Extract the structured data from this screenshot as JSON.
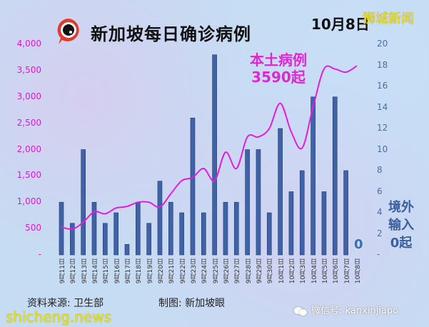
{
  "header": {
    "title": "新加坡每日确诊病例",
    "date": "10月8日",
    "brand": "狮城新闻",
    "logo_icon": "eye-speech-bubble-icon"
  },
  "annotations": {
    "local_label": "本土病例",
    "local_value": "3590起",
    "import_line1": "境外",
    "import_line2": "输入",
    "import_value": "0起",
    "last_bar_label": "0"
  },
  "axes": {
    "left_ticks": [
      "4,000",
      "3,500",
      "3,000",
      "2,500",
      "2,000",
      "1,500",
      "1,000",
      "500",
      "-"
    ],
    "right_ticks": [
      "20",
      "18",
      "16",
      "14",
      "12",
      "10",
      "8",
      "6",
      "4",
      "2",
      "-"
    ]
  },
  "footer": {
    "source": "资料来源:  卫生部",
    "made_by": "制图:  新加坡眼",
    "watermark": "shicheng.news",
    "wechat": "微信号: kanxinjiapo",
    "wechat_icon": "wechat-icon"
  },
  "colors": {
    "bar": "#3f62a8",
    "bar_edge": "#233a66",
    "line": "#e01ee0",
    "left_axis": "#d81ad8",
    "right_axis": "#4a6ea8"
  },
  "chart_data": {
    "type": "bar+line",
    "title": "新加坡每日确诊病例",
    "subtitle": "10月8日",
    "categories": [
      "9月11日",
      "9月12日",
      "9月13日",
      "9月14日",
      "9月15日",
      "9月16日",
      "9月17日",
      "9月18日",
      "9月19日",
      "9月20日",
      "9月21日",
      "9月22日",
      "9月23日",
      "9月24日",
      "9月25日",
      "9月26日",
      "9月27日",
      "9月28日",
      "9月29日",
      "9月30日",
      "10月1日",
      "10月2日",
      "10月3日",
      "10月4日",
      "10月5日",
      "10月6日",
      "10月7日",
      "10月8日"
    ],
    "series": [
      {
        "name": "境外输入",
        "type": "bar",
        "axis": "right",
        "values": [
          5,
          3,
          10,
          5,
          3,
          4,
          1,
          5,
          3,
          7,
          5,
          4,
          13,
          4,
          19,
          5,
          5,
          10,
          10,
          4,
          12,
          6,
          8,
          15,
          6,
          15,
          8,
          0
        ]
      },
      {
        "name": "本土病例",
        "type": "line",
        "axis": "left",
        "values": [
          530,
          490,
          620,
          820,
          780,
          890,
          920,
          1000,
          1000,
          910,
          1160,
          1410,
          1470,
          1640,
          1410,
          1950,
          1640,
          2240,
          2240,
          2400,
          2880,
          2340,
          2030,
          2810,
          3530,
          3530,
          3470,
          3590
        ]
      }
    ],
    "left_ylim": [
      0,
      4000
    ],
    "right_ylim": [
      0,
      20
    ],
    "xlabel": "",
    "ylabel_left": "",
    "ylabel_right": "",
    "grid": false,
    "legend": "annotations"
  }
}
